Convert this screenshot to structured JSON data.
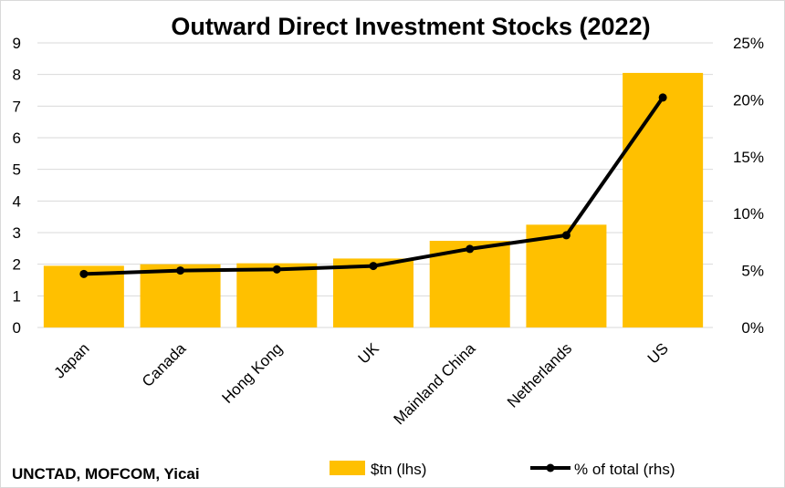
{
  "chart_data": {
    "type": "bar",
    "title": "Outward Direct Investment Stocks (2022)",
    "categories": [
      "Japan",
      "Canada",
      "Hong Kong",
      "UK",
      "Mainland China",
      "Netherlands",
      "US"
    ],
    "series": [
      {
        "name": "$tn (lhs)",
        "type": "bar",
        "axis": "left",
        "color": "#FFC000",
        "values": [
          1.95,
          2.0,
          2.03,
          2.18,
          2.74,
          3.25,
          8.05
        ]
      },
      {
        "name": "% of total (rhs)",
        "type": "line",
        "axis": "right",
        "color": "#000000",
        "values": [
          4.7,
          5.0,
          5.1,
          5.4,
          6.9,
          8.1,
          20.2
        ]
      }
    ],
    "y_left": {
      "ylim": [
        0,
        9
      ],
      "ticks": [
        "0",
        "1",
        "2",
        "3",
        "4",
        "5",
        "6",
        "7",
        "8",
        "9"
      ]
    },
    "y_right": {
      "ylim": [
        0,
        25
      ],
      "ticks": [
        "0%",
        "5%",
        "10%",
        "15%",
        "20%",
        "25%"
      ]
    },
    "grid": true,
    "legend_position": "bottom",
    "source": "UNCTAD, MOFCOM, Yicai"
  }
}
